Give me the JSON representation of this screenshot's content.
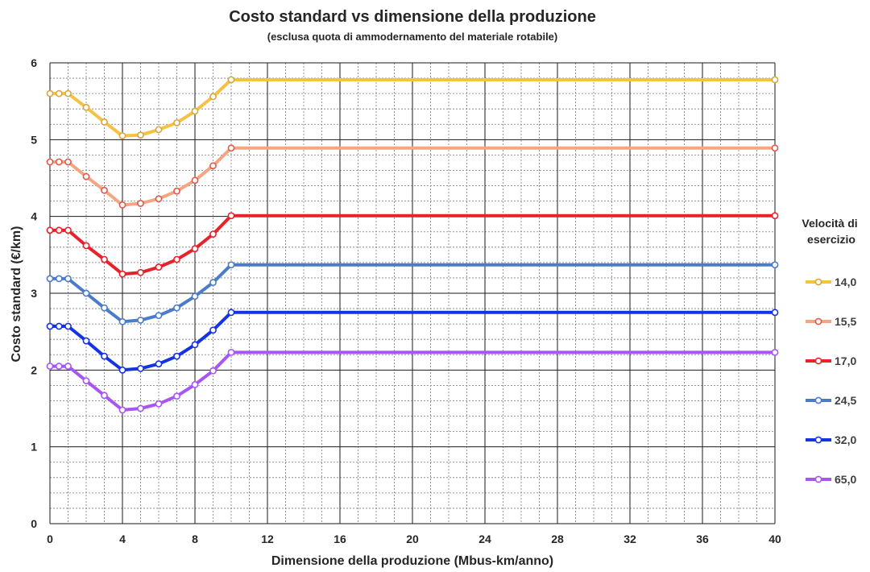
{
  "chart_data": {
    "type": "line",
    "title": "Costo standard vs dimensione della produzione",
    "subtitle": "(esclusa quota di ammodernamento del materiale rotabile)",
    "xlabel": "Dimensione della produzione (Mbus-km/anno)",
    "ylabel": "Costo standard (€/km)",
    "xlim": [
      0,
      40
    ],
    "ylim": [
      0,
      6
    ],
    "x_ticks": [
      "0",
      "4",
      "8",
      "12",
      "16",
      "20",
      "24",
      "28",
      "32",
      "36",
      "40"
    ],
    "y_ticks": [
      "0",
      "1",
      "2",
      "3",
      "4",
      "5",
      "6"
    ],
    "grid": true,
    "legend_title": "Velocità di esercizio",
    "legend_position": "right",
    "x": [
      0,
      0.5,
      1,
      2,
      3,
      4,
      5,
      6,
      7,
      8,
      9,
      10,
      40
    ],
    "series": [
      {
        "name": "14,0",
        "color": "#f5c242",
        "marker_color": "#d9a640",
        "values": [
          5.6,
          5.6,
          5.6,
          5.42,
          5.23,
          5.05,
          5.06,
          5.13,
          5.22,
          5.37,
          5.56,
          5.78,
          5.78
        ]
      },
      {
        "name": "15,5",
        "color": "#f4a582",
        "marker_color": "#e05a4a",
        "values": [
          4.71,
          4.71,
          4.71,
          4.52,
          4.34,
          4.15,
          4.17,
          4.23,
          4.33,
          4.47,
          4.66,
          4.89,
          4.89
        ]
      },
      {
        "name": "17,0",
        "color": "#e8222a",
        "marker_color": "#e8222a",
        "values": [
          3.82,
          3.82,
          3.82,
          3.62,
          3.44,
          3.25,
          3.27,
          3.34,
          3.44,
          3.58,
          3.77,
          4.01,
          4.01
        ]
      },
      {
        "name": "24,5",
        "color": "#4a7cc9",
        "marker_color": "#4a7cc9",
        "values": [
          3.19,
          3.19,
          3.19,
          3.0,
          2.81,
          2.63,
          2.65,
          2.71,
          2.81,
          2.96,
          3.14,
          3.37,
          3.37
        ]
      },
      {
        "name": "32,0",
        "color": "#1433e6",
        "marker_color": "#1433e6",
        "values": [
          2.57,
          2.57,
          2.57,
          2.38,
          2.18,
          2.0,
          2.02,
          2.08,
          2.18,
          2.33,
          2.52,
          2.75,
          2.75
        ]
      },
      {
        "name": "65,0",
        "color": "#a855f5",
        "marker_color": "#a855f5",
        "values": [
          2.05,
          2.05,
          2.05,
          1.86,
          1.67,
          1.48,
          1.5,
          1.56,
          1.66,
          1.81,
          1.99,
          2.23,
          2.23
        ]
      }
    ]
  }
}
